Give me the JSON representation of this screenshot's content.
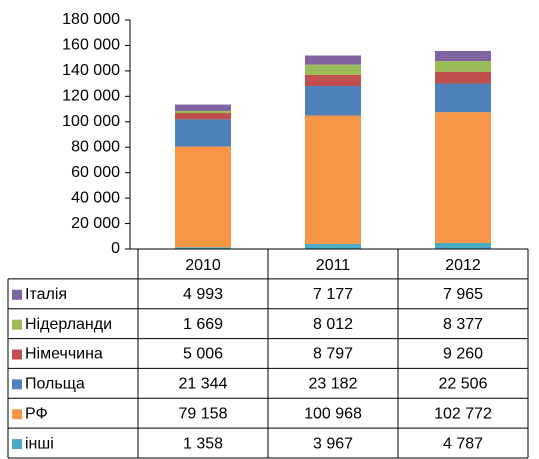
{
  "chart_data": {
    "type": "bar",
    "stacked": true,
    "categories": [
      "2010",
      "2011",
      "2012"
    ],
    "ylim": [
      0,
      180000
    ],
    "yticks": [
      0,
      {
        "value": 20000,
        "label": "20 000"
      },
      {
        "value": 40000,
        "label": "40 000"
      },
      {
        "value": 60000,
        "label": "60 000"
      },
      {
        "value": 80000,
        "label": "80 000"
      },
      {
        "value": 100000,
        "label": "100 000"
      },
      {
        "value": 120000,
        "label": "120 000"
      },
      {
        "value": 140000,
        "label": "140 000"
      },
      {
        "value": 160000,
        "label": "160 000"
      },
      {
        "value": 180000,
        "label": "180 000"
      }
    ],
    "grid": false,
    "series": [
      {
        "name": "інші",
        "color": "#4bacc6",
        "values": [
          1358,
          3967,
          4787
        ],
        "value_labels": [
          "1 358",
          "3 967",
          "4 787"
        ]
      },
      {
        "name": "РФ",
        "color": "#f79646",
        "values": [
          79158,
          100968,
          102772
        ],
        "value_labels": [
          "79 158",
          "100 968",
          "102 772"
        ]
      },
      {
        "name": "Польща",
        "color": "#4f81bd",
        "values": [
          21344,
          23182,
          22506
        ],
        "value_labels": [
          "21 344",
          "23 182",
          "22 506"
        ]
      },
      {
        "name": "Німеччина",
        "color": "#c0504d",
        "values": [
          5006,
          8797,
          9260
        ],
        "value_labels": [
          "5 006",
          "8 797",
          "9 260"
        ]
      },
      {
        "name": "Нідерланди",
        "color": "#9bbb59",
        "values": [
          1669,
          8012,
          8377
        ],
        "value_labels": [
          "1 669",
          "8 012",
          "8 377"
        ]
      },
      {
        "name": "Італія",
        "color": "#8064a2",
        "values": [
          4993,
          7177,
          7965
        ],
        "value_labels": [
          "4 993",
          "7 177",
          "7 965"
        ]
      }
    ]
  }
}
